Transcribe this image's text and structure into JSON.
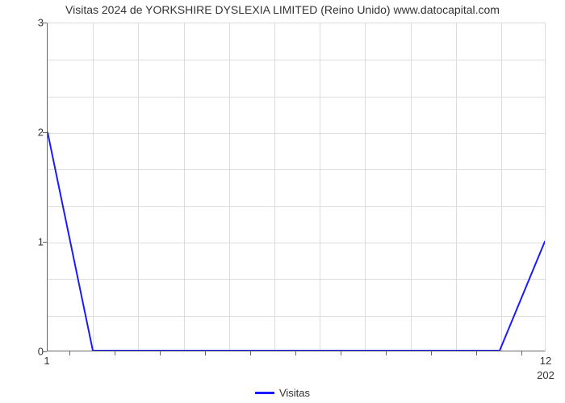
{
  "chart": {
    "type": "line",
    "title": "Visitas 2024 de YORKSHIRE DYSLEXIA LIMITED (Reino Unido) www.datocapital.com",
    "title_fontsize": 14,
    "background_color": "#ffffff",
    "grid_color": "#dddddd",
    "axis_color": "#666666",
    "text_color": "#333333",
    "ylim": [
      0,
      3
    ],
    "xlim": [
      1,
      12
    ],
    "y_ticks": [
      0,
      1,
      2,
      3
    ],
    "x_tick_left": "1",
    "x_tick_right_top": "12",
    "x_tick_right_bottom": "202",
    "x_minor_ticks_count": 11,
    "series": {
      "name": "Visitas",
      "color": "#1a1aff",
      "line_width": 2,
      "x": [
        1,
        2,
        3,
        4,
        5,
        6,
        7,
        8,
        9,
        10,
        11,
        12
      ],
      "y": [
        2,
        0,
        0,
        0,
        0,
        0,
        0,
        0,
        0,
        0,
        0,
        1
      ]
    }
  }
}
